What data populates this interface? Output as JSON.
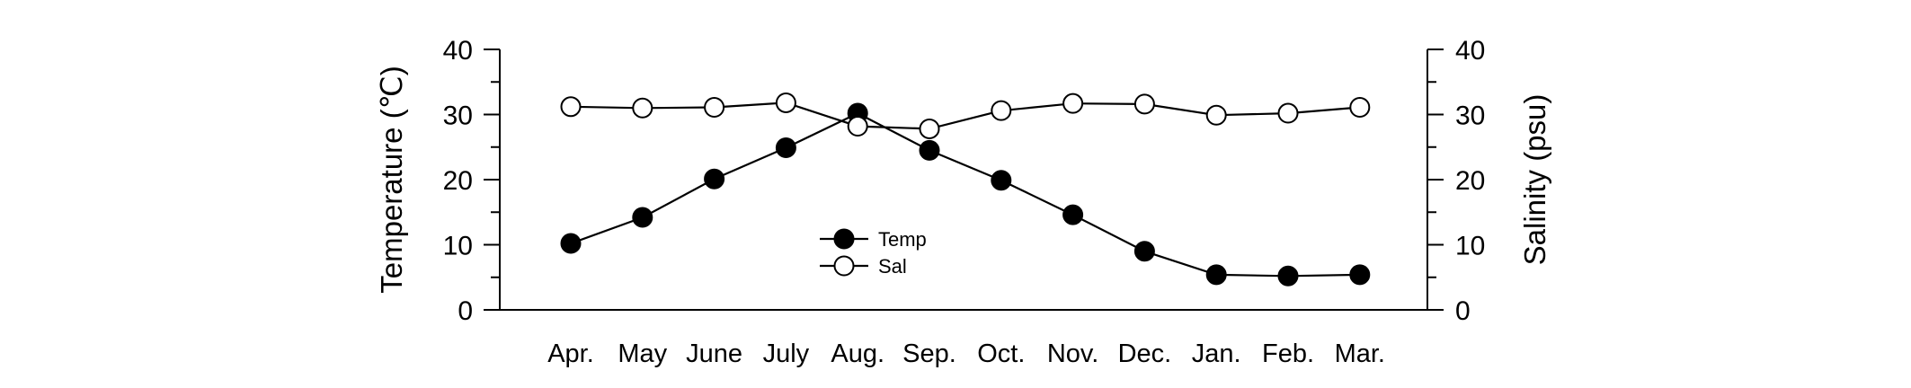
{
  "chart_data": {
    "type": "line",
    "categories": [
      "Apr.",
      "May",
      "June",
      "July",
      "Aug.",
      "Sep.",
      "Oct.",
      "Nov.",
      "Dec.",
      "Jan.",
      "Feb.",
      "Mar."
    ],
    "series": [
      {
        "name": "Temp",
        "axis": "left",
        "marker": "filled-circle",
        "values": [
          10.2,
          14.2,
          20.1,
          24.9,
          30.2,
          24.5,
          19.9,
          14.6,
          9.0,
          5.4,
          5.2,
          5.4
        ]
      },
      {
        "name": "Sal",
        "axis": "right",
        "marker": "open-circle",
        "values": [
          31.2,
          31.0,
          31.1,
          31.8,
          28.2,
          27.8,
          30.6,
          31.7,
          31.6,
          29.9,
          30.2,
          31.1
        ]
      }
    ],
    "ylabel_left": "Temperature (℃)",
    "ylabel_right": "Salinity (psu)",
    "ylim_left": [
      0,
      40
    ],
    "ylim_right": [
      0,
      40
    ],
    "yticks_left": [
      0,
      10,
      20,
      30,
      40
    ],
    "yticks_right": [
      0,
      10,
      20,
      30,
      40
    ],
    "grid": false,
    "legend_position": "center"
  }
}
